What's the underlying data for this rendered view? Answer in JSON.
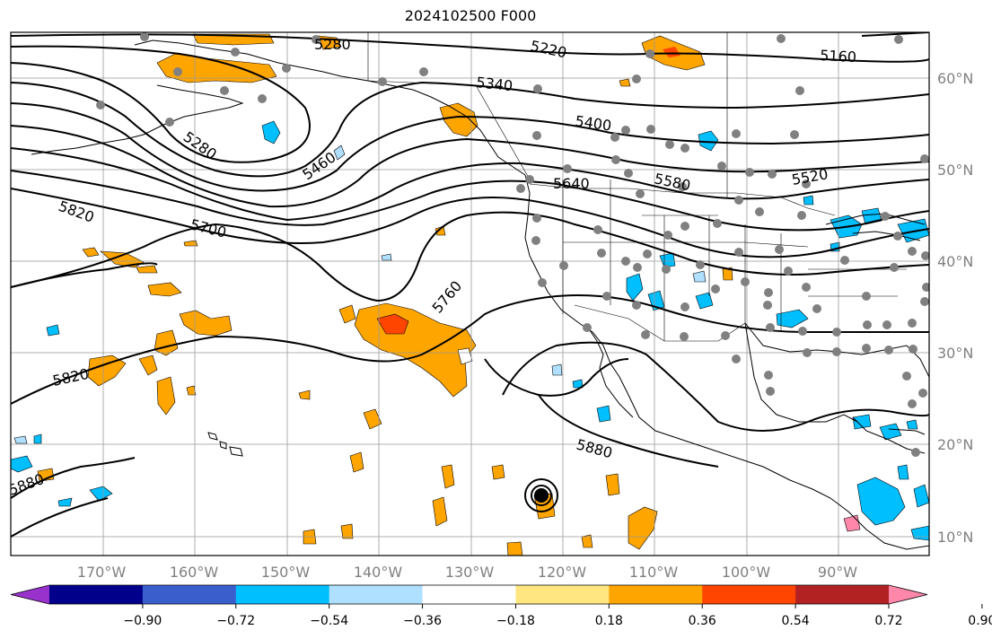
{
  "title": "2024102500 F000",
  "map": {
    "lon_labels": [
      "170°W",
      "160°W",
      "150°W",
      "140°W",
      "130°W",
      "120°W",
      "110°W",
      "100°W",
      "90°W"
    ],
    "lat_labels": [
      "60°N",
      "50°N",
      "40°N",
      "30°N",
      "20°N",
      "10°N"
    ],
    "contour_labels": [
      "5280",
      "5220",
      "5160",
      "5340",
      "5400",
      "5280",
      "5460",
      "5520",
      "5580",
      "5640",
      "5820",
      "5700",
      "5760",
      "5820",
      "5880",
      "5880"
    ],
    "fill_colors": {
      "positive_light": "#ffe680",
      "positive": "#ffa500",
      "positive_strong": "#ff4500",
      "negative_light": "#b0e0ff",
      "negative": "#00bfff"
    },
    "station_color": "#808080"
  },
  "colorbar": {
    "tick_labels": [
      "−0.90",
      "−0.72",
      "−0.54",
      "−0.36",
      "−0.18",
      "0.18",
      "0.36",
      "0.54",
      "0.72",
      "0.90"
    ],
    "colors": [
      "#9932cc",
      "#00008b",
      "#3a5fcd",
      "#00bfff",
      "#b0e0ff",
      "#ffffff",
      "#ffe680",
      "#ffa500",
      "#ff4500",
      "#b22222",
      "#ff88aa"
    ]
  }
}
